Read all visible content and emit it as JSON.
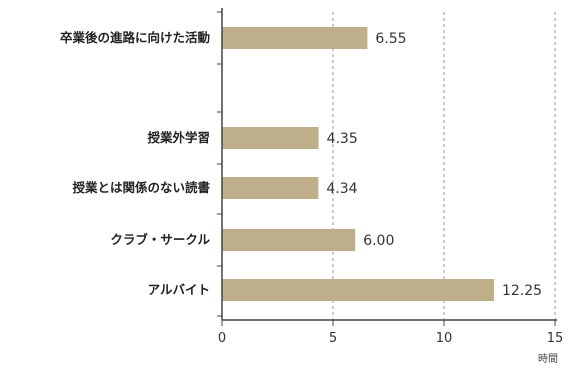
{
  "chart_data": {
    "type": "bar",
    "orientation": "horizontal",
    "categories": [
      "卒業後の進路に向けた活動",
      "授業外学習",
      "授業とは関係のない読書",
      "クラブ・サークル",
      "アルバイト"
    ],
    "values": [
      6.55,
      4.35,
      4.34,
      6.0,
      12.25
    ],
    "value_labels": [
      "6.55",
      "4.35",
      "4.34",
      "6.00",
      "12.25"
    ],
    "xlim": [
      0,
      15
    ],
    "xticks": [
      0,
      5,
      10,
      15
    ],
    "xtick_labels": [
      "0",
      "5",
      "10",
      "15"
    ],
    "xlabel": "時間",
    "grid": "vertical-dashed",
    "bar_color": "#bfae8a",
    "axis_color": "#444444",
    "grid_color": "#9a9a9a"
  }
}
